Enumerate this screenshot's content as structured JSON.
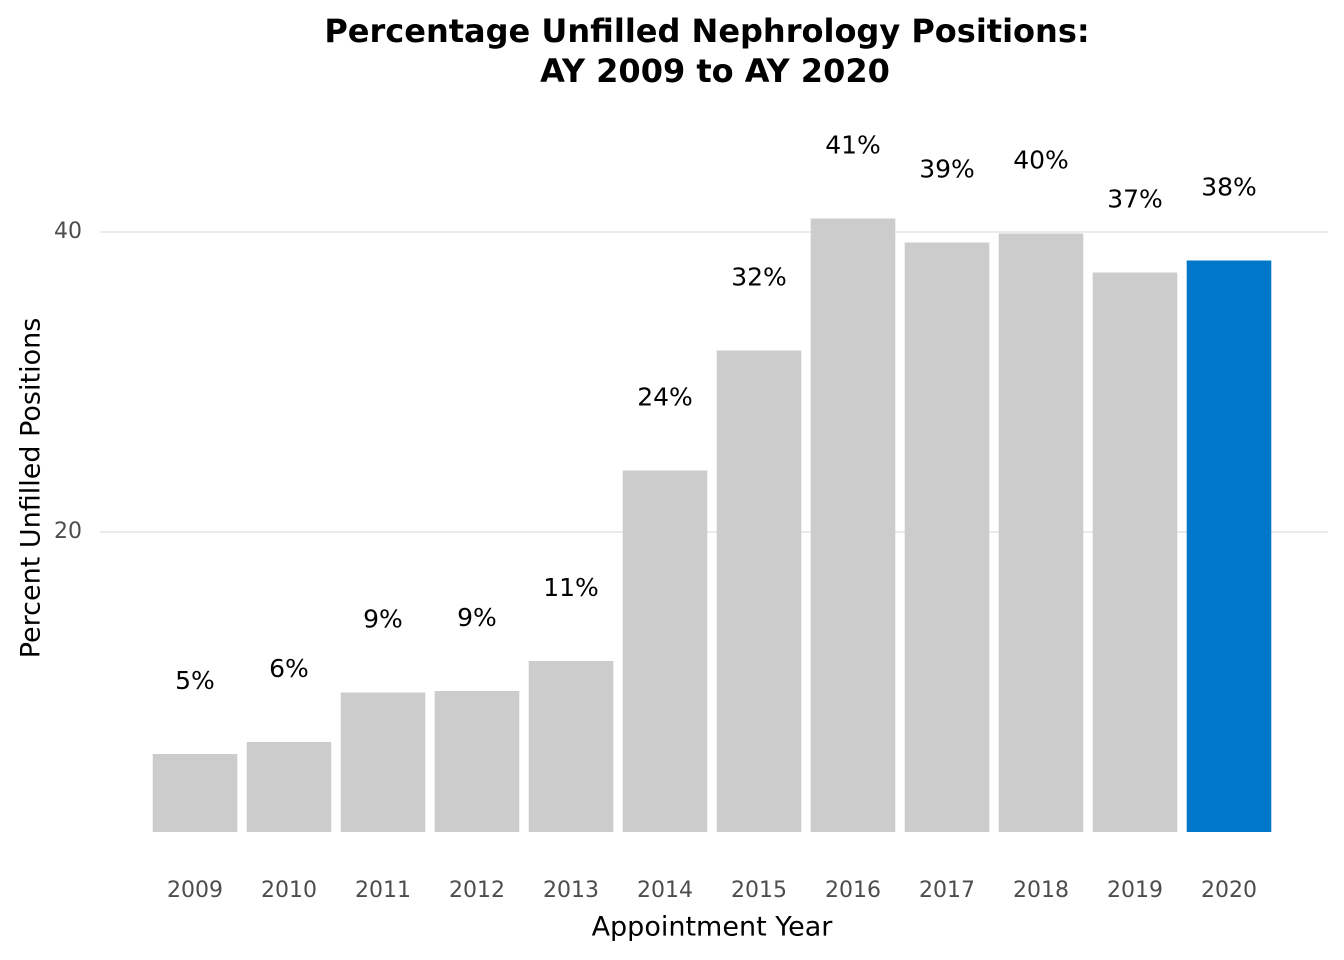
{
  "chart_data": {
    "type": "bar",
    "title": [
      "Percentage Unfilled Nephrology Positions:",
      "AY 2009 to AY 2020"
    ],
    "x_label": "Appointment Year",
    "y_label": "Percent Unfilled Positions",
    "categories": [
      "2009",
      "2010",
      "2011",
      "2012",
      "2013",
      "2014",
      "2015",
      "2016",
      "2017",
      "2018",
      "2019",
      "2020"
    ],
    "values": [
      5.2,
      6.0,
      9.3,
      9.4,
      11.4,
      24.1,
      32.1,
      40.9,
      39.3,
      39.9,
      37.3,
      38.1
    ],
    "value_labels": [
      "5%",
      "6%",
      "9%",
      "9%",
      "11%",
      "24%",
      "32%",
      "41%",
      "39%",
      "40%",
      "37%",
      "38%"
    ],
    "colors": [
      "#cccccc",
      "#cccccc",
      "#cccccc",
      "#cccccc",
      "#cccccc",
      "#cccccc",
      "#cccccc",
      "#cccccc",
      "#cccccc",
      "#cccccc",
      "#cccccc",
      "#0077c8"
    ],
    "ylim": [
      0,
      45
    ],
    "yticks": [
      20,
      40
    ],
    "grid": true
  }
}
